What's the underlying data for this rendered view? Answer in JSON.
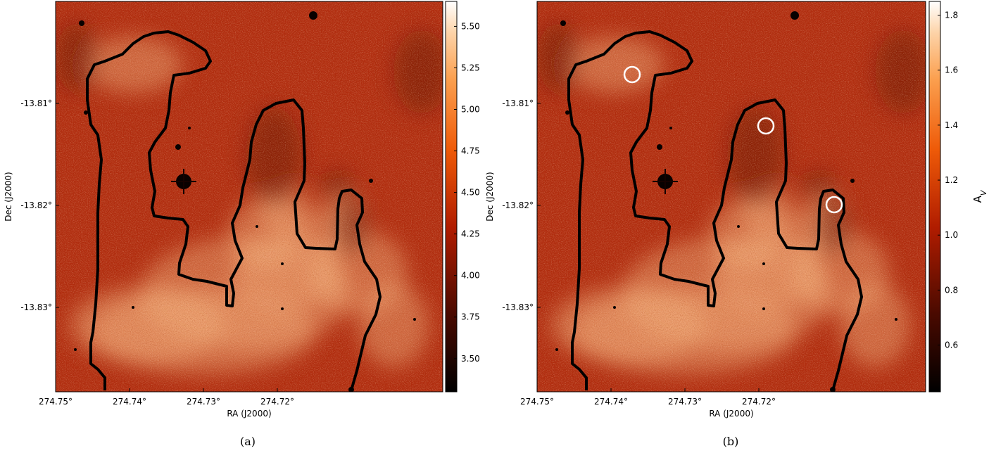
{
  "colors": {
    "map_base": "#b22d10",
    "map_bright": "#f6b37e",
    "map_dark": "#5e0f03",
    "contour": "#000000",
    "circle": "#ffffff"
  },
  "chart_data": [
    {
      "type": "heatmap",
      "caption": "(a)",
      "xlabel": "RA (J2000)",
      "ylabel": "Dec (J2000)",
      "xticks": [
        "274.75°",
        "274.74°",
        "274.73°",
        "274.72°"
      ],
      "yticks": [
        "-13.81°",
        "-13.82°",
        "-13.83°"
      ],
      "colorbar": {
        "label": "",
        "ticks": [
          "5.50",
          "5.25",
          "5.00",
          "4.75",
          "4.50",
          "4.25",
          "4.00",
          "3.75",
          "3.50"
        ],
        "range": [
          3.3,
          5.65
        ]
      }
    },
    {
      "type": "heatmap",
      "caption": "(b)",
      "xlabel": "RA (J2000)",
      "ylabel": "Dec (J2000)",
      "xticks": [
        "274.75°",
        "274.74°",
        "274.73°",
        "274.72°"
      ],
      "yticks": [
        "-13.81°",
        "-13.82°",
        "-13.83°"
      ],
      "colorbar": {
        "label": "A_V",
        "ticks": [
          "1.8",
          "1.6",
          "1.4",
          "1.2",
          "1.0",
          "0.8",
          "0.6"
        ],
        "range": [
          0.43,
          1.85
        ]
      }
    }
  ]
}
